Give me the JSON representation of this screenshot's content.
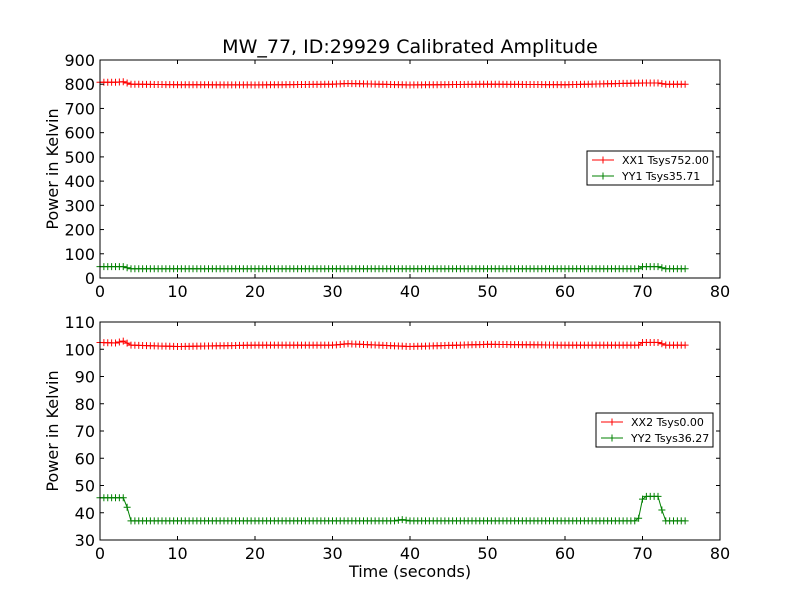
{
  "figure": {
    "title": "MW_77, ID:29929 Calibrated Amplitude"
  },
  "chart_data": [
    {
      "type": "line",
      "title": "MW_77, ID:29929 Calibrated Amplitude",
      "xlabel": "",
      "ylabel": "Power in Kelvin",
      "xlim": [
        0,
        80
      ],
      "ylim": [
        0,
        900
      ],
      "xticks": [
        "0",
        "10",
        "20",
        "30",
        "40",
        "50",
        "60",
        "70",
        "80"
      ],
      "yticks": [
        "0",
        "100",
        "200",
        "300",
        "400",
        "500",
        "600",
        "700",
        "800",
        "900"
      ],
      "grid": false,
      "legend_position": "right",
      "marker": "+",
      "series": [
        {
          "name": "XX1 Tsys752.00",
          "color": "#ff0000",
          "x": [
            0,
            10,
            20,
            30,
            40,
            50,
            60,
            70,
            75.5
          ],
          "y": [
            808,
            800,
            800,
            800,
            800,
            800,
            800,
            800,
            800
          ],
          "points": [
            [
              0,
              808
            ],
            [
              2,
              808
            ],
            [
              3,
              810
            ],
            [
              4,
              800
            ],
            [
              10,
              798
            ],
            [
              20,
              797
            ],
            [
              30,
              800
            ],
            [
              32,
              803
            ],
            [
              40,
              797
            ],
            [
              50,
              800
            ],
            [
              60,
              798
            ],
            [
              70,
              805
            ],
            [
              72,
              805
            ],
            [
              73,
              800
            ],
            [
              75.5,
              800
            ]
          ]
        },
        {
          "name": "YY1 Tsys35.71",
          "color": "#008000",
          "points": [
            [
              0,
              47
            ],
            [
              3,
              47
            ],
            [
              4,
              38
            ],
            [
              10,
              38
            ],
            [
              20,
              38
            ],
            [
              30,
              38
            ],
            [
              40,
              38
            ],
            [
              50,
              38
            ],
            [
              60,
              38
            ],
            [
              69.5,
              38
            ],
            [
              70,
              47
            ],
            [
              72,
              47
            ],
            [
              73,
              38
            ],
            [
              75.5,
              38
            ]
          ]
        }
      ]
    },
    {
      "type": "line",
      "title": "",
      "xlabel": "Time (seconds)",
      "ylabel": "Power in Kelvin",
      "xlim": [
        0,
        80
      ],
      "ylim": [
        30,
        110
      ],
      "xticks": [
        "0",
        "10",
        "20",
        "30",
        "40",
        "50",
        "60",
        "70",
        "80"
      ],
      "yticks": [
        "30",
        "40",
        "50",
        "60",
        "70",
        "80",
        "90",
        "100",
        "110"
      ],
      "grid": false,
      "legend_position": "right",
      "marker": "+",
      "series": [
        {
          "name": "XX2 Tsys0.00",
          "color": "#ff0000",
          "points": [
            [
              0,
              102.5
            ],
            [
              2,
              102.3
            ],
            [
              3,
              103
            ],
            [
              4,
              101.5
            ],
            [
              10,
              101
            ],
            [
              20,
              101.5
            ],
            [
              30,
              101.5
            ],
            [
              32,
              102
            ],
            [
              40,
              101
            ],
            [
              50,
              101.8
            ],
            [
              60,
              101.5
            ],
            [
              69.5,
              101.5
            ],
            [
              70,
              102.5
            ],
            [
              72,
              102.5
            ],
            [
              73,
              101.5
            ],
            [
              75.5,
              101.5
            ]
          ]
        },
        {
          "name": "YY2 Tsys36.27",
          "color": "#008000",
          "points": [
            [
              0,
              45.5
            ],
            [
              3,
              45.5
            ],
            [
              3.5,
              42
            ],
            [
              4,
              37
            ],
            [
              10,
              37
            ],
            [
              20,
              37
            ],
            [
              30,
              37
            ],
            [
              38,
              37
            ],
            [
              39,
              37.5
            ],
            [
              40,
              37
            ],
            [
              50,
              37
            ],
            [
              60,
              37
            ],
            [
              69,
              37
            ],
            [
              69.5,
              38
            ],
            [
              70,
              45
            ],
            [
              70.5,
              46
            ],
            [
              72,
              46
            ],
            [
              72.5,
              41
            ],
            [
              73,
              37
            ],
            [
              75.5,
              37
            ]
          ]
        }
      ]
    }
  ]
}
